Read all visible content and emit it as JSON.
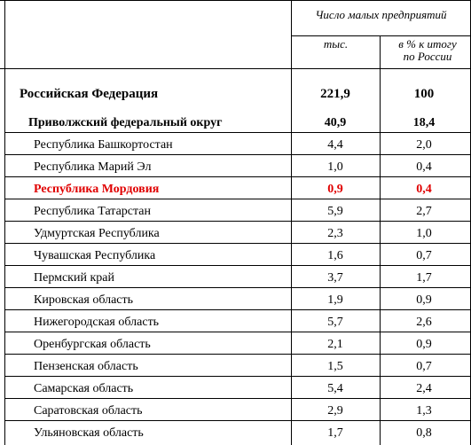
{
  "header": {
    "group_label": "Число малых предприятий",
    "col1_label": "тыс.",
    "col2_label": "в % к итогу по России"
  },
  "total": {
    "name": "Российская Федерация",
    "thousands": "221,9",
    "percent": "100"
  },
  "district": {
    "name": "Приволжский федеральный округ",
    "thousands": "40,9",
    "percent": "18,4"
  },
  "rows": [
    {
      "name": "Республика Башкортостан",
      "thousands": "4,4",
      "percent": "2,0"
    },
    {
      "name": "Республика Марий Эл",
      "thousands": "1,0",
      "percent": "0,4"
    },
    {
      "name": "Республика Мордовия",
      "thousands": "0,9",
      "percent": "0,4"
    },
    {
      "name": "Республика Татарстан",
      "thousands": "5,9",
      "percent": "2,7"
    },
    {
      "name": "Удмуртская Республика",
      "thousands": "2,3",
      "percent": "1,0"
    },
    {
      "name": "Чувашская Республика",
      "thousands": "1,6",
      "percent": "0,7"
    },
    {
      "name": "Пермский край",
      "thousands": "3,7",
      "percent": "1,7"
    },
    {
      "name": "Кировская область",
      "thousands": "1,9",
      "percent": "0,9"
    },
    {
      "name": "Нижегородская область",
      "thousands": "5,7",
      "percent": "2,6"
    },
    {
      "name": "Оренбургская область",
      "thousands": "2,1",
      "percent": "0,9"
    },
    {
      "name": "Пензенская область",
      "thousands": "1,5",
      "percent": "0,7"
    },
    {
      "name": "Самарская область",
      "thousands": "5,4",
      "percent": "2,4"
    },
    {
      "name": "Саратовская область",
      "thousands": "2,9",
      "percent": "1,3"
    },
    {
      "name": "Ульяновская область",
      "thousands": "1,7",
      "percent": "0,8"
    }
  ],
  "colors": {
    "highlight": "#e00000",
    "text": "#000000"
  }
}
